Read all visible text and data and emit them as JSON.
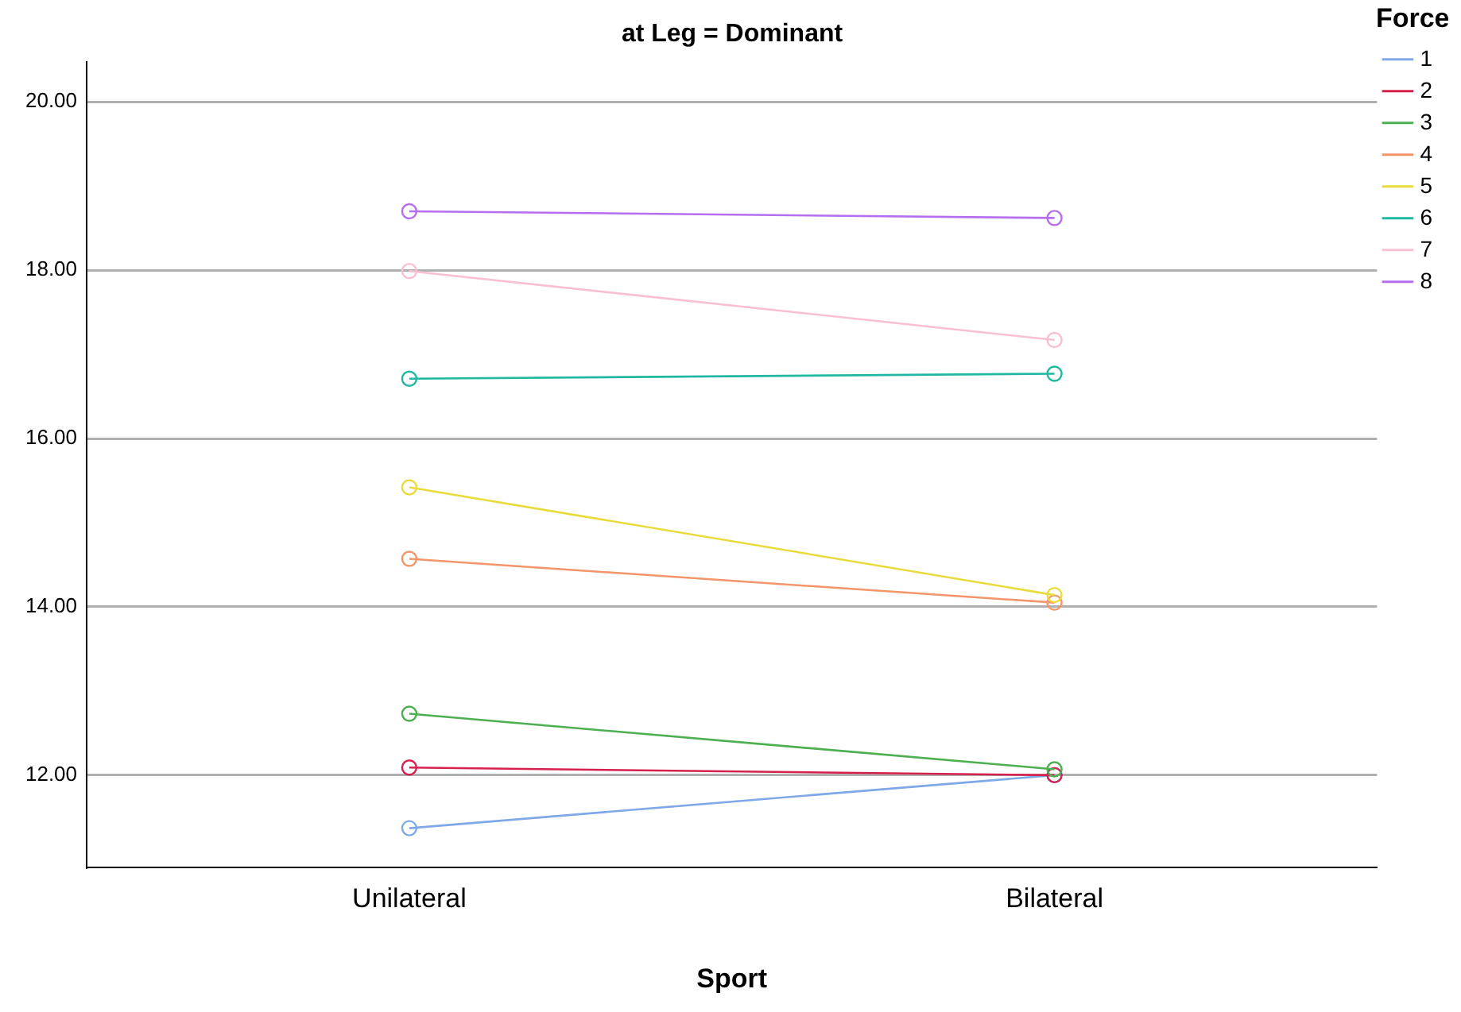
{
  "chart_data": {
    "type": "line",
    "title": "at Leg = Dominant",
    "xlabel": "Sport",
    "legend_title": "Force",
    "categories": [
      "Unilateral",
      "Bilateral"
    ],
    "series": [
      {
        "name": "1",
        "color": "#7fa8e8",
        "values": [
          11.37,
          12.0
        ]
      },
      {
        "name": "2",
        "color": "#d6204e",
        "values": [
          12.09,
          12.0
        ]
      },
      {
        "name": "3",
        "color": "#4caf50",
        "values": [
          12.73,
          12.07
        ]
      },
      {
        "name": "4",
        "color": "#f4956a",
        "values": [
          14.57,
          14.05
        ]
      },
      {
        "name": "5",
        "color": "#e8dc3c",
        "values": [
          15.42,
          14.14
        ]
      },
      {
        "name": "6",
        "color": "#20b8a0",
        "values": [
          16.71,
          16.77
        ]
      },
      {
        "name": "7",
        "color": "#f8c0d0",
        "values": [
          17.99,
          17.17
        ]
      },
      {
        "name": "8",
        "color": "#b56ef0",
        "values": [
          18.7,
          18.62
        ]
      }
    ],
    "ylim": [
      10.9,
      20.47
    ],
    "yticks": [
      {
        "value": 12,
        "label": "12.00"
      },
      {
        "value": 14,
        "label": "14.00"
      },
      {
        "value": 16,
        "label": "16.00"
      },
      {
        "value": 18,
        "label": "18.00"
      },
      {
        "value": 20,
        "label": "20.00"
      }
    ],
    "grid": "y",
    "legend": "right",
    "marker": "circle",
    "line_style": "solid"
  }
}
